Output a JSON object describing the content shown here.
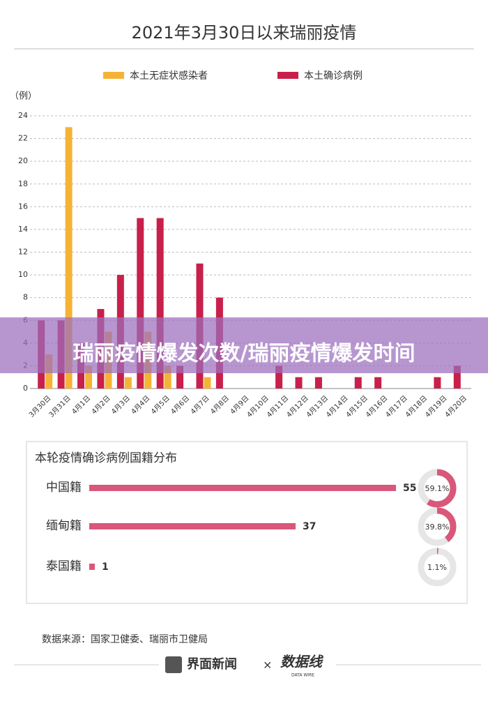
{
  "chart_data": [
    {
      "type": "bar",
      "title": "2021年3月30日以来瑞丽疫情",
      "y_unit": "（例）",
      "categories": [
        "3月30日",
        "3月31日",
        "4月1日",
        "4月2日",
        "4月3日",
        "4月4日",
        "4月5日",
        "4月6日",
        "4月7日",
        "4月8日",
        "4月9日",
        "4月10日",
        "4月11日",
        "4月12日",
        "4月13日",
        "4月14日",
        "4月15日",
        "4月16日",
        "4月17日",
        "4月18日",
        "4月19日",
        "4月20日"
      ],
      "series": [
        {
          "name": "本土无症状感染者",
          "color": "#f5b335",
          "values": [
            3,
            23,
            2,
            5,
            1,
            5,
            2,
            0,
            1,
            0,
            0,
            0,
            0,
            0,
            0,
            0,
            0,
            0,
            0,
            0,
            0,
            0
          ]
        },
        {
          "name": "本土确诊病例",
          "color": "#c8204a",
          "values": [
            6,
            6,
            4,
            7,
            10,
            15,
            15,
            2,
            11,
            8,
            0,
            0,
            2,
            1,
            1,
            0,
            1,
            1,
            0,
            0,
            1,
            2
          ]
        }
      ],
      "ylim": [
        0,
        24
      ],
      "yticks": [
        0,
        2,
        4,
        6,
        8,
        10,
        12,
        14,
        16,
        18,
        20,
        22,
        24
      ],
      "grid": true
    },
    {
      "type": "hbar",
      "title": "本轮疫情确诊病例国籍分布",
      "categories": [
        "中国籍",
        "缅甸籍",
        "泰国籍"
      ],
      "values": [
        55,
        37,
        1
      ],
      "color": "#d9577a",
      "shares": {
        "values": [
          59.1,
          39.8,
          1.1
        ],
        "value_labels": [
          "59.1%",
          "39.8%",
          "1.1%"
        ]
      }
    }
  ],
  "banner": {
    "text": "瑞丽疫情爆发次数/瑞丽疫情爆发时间"
  },
  "footer": {
    "source": "数据来源：国家卫健委、瑞丽市卫健局",
    "brand": "界面新闻",
    "separator": "×",
    "partner": "数据线",
    "partner_sub": "DATA WIRE"
  }
}
